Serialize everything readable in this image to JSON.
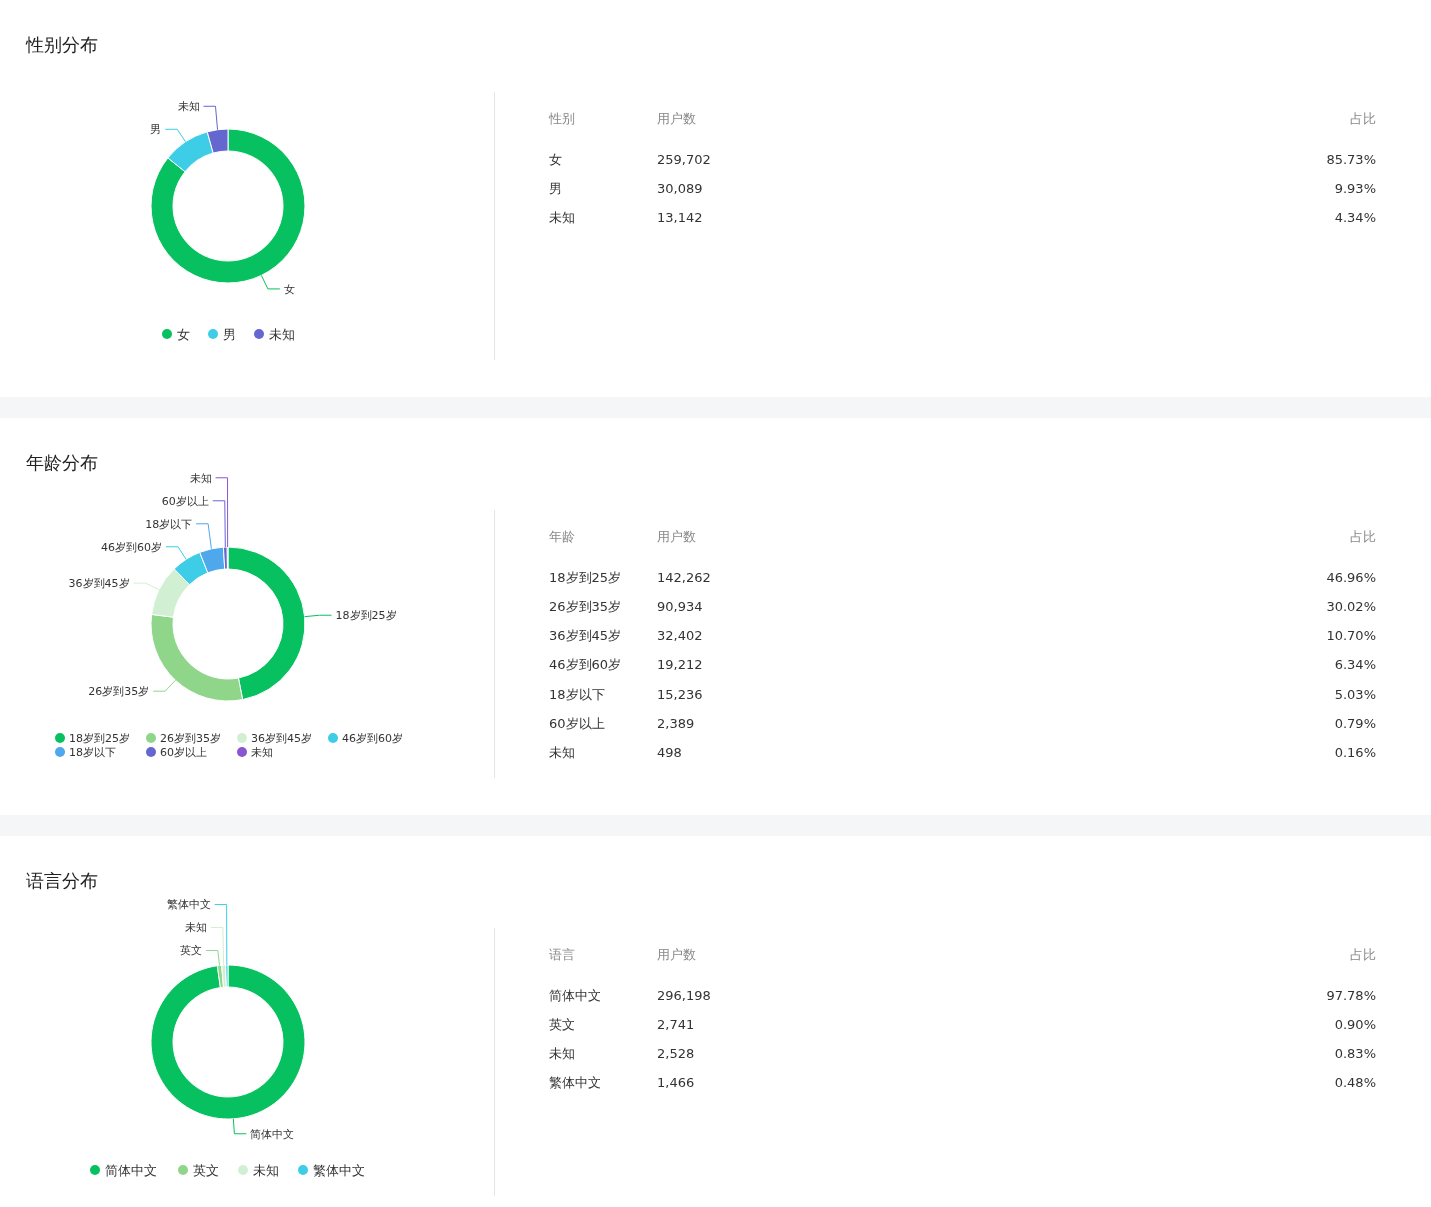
{
  "chart_data": [
    {
      "type": "donut",
      "title": "性别分布",
      "categories": [
        "女",
        "男",
        "未知"
      ],
      "values": [
        85.73,
        9.93,
        4.34
      ],
      "colors": [
        "#07c160",
        "#3dcde6",
        "#6467d0"
      ],
      "legend": "bottom"
    },
    {
      "type": "other",
      "xlabel": "性别",
      "categories": [
        "女",
        "男",
        "未知"
      ],
      "data_labels": true,
      "series": [
        {
          "name": "用户数",
          "values": [
            259702,
            30089,
            13142
          ],
          "value_labels": [
            "259,702",
            "30,089",
            "13,142"
          ]
        },
        {
          "name": "占比",
          "values": [
            85.73,
            9.93,
            4.34
          ],
          "value_labels": [
            "85.73%",
            "9.93%",
            "4.34%"
          ]
        }
      ]
    },
    {
      "type": "donut",
      "title": "年龄分布",
      "categories": [
        "18岁到25岁",
        "26岁到35岁",
        "36岁到45岁",
        "46岁到60岁",
        "18岁以下",
        "60岁以上",
        "未知"
      ],
      "values": [
        46.96,
        30.02,
        10.7,
        6.34,
        5.03,
        0.79,
        0.16
      ],
      "colors": [
        "#07c160",
        "#8fd68a",
        "#d1f0d3",
        "#3dcde6",
        "#4fa7ec",
        "#6467d0",
        "#8a56d0"
      ],
      "legend": "bottom"
    },
    {
      "type": "other",
      "xlabel": "年龄",
      "categories": [
        "18岁到25岁",
        "26岁到35岁",
        "36岁到45岁",
        "46岁到60岁",
        "18岁以下",
        "60岁以上",
        "未知"
      ],
      "data_labels": true,
      "series": [
        {
          "name": "用户数",
          "values": [
            142262,
            90934,
            32402,
            19212,
            15236,
            2389,
            498
          ],
          "value_labels": [
            "142,262",
            "90,934",
            "32,402",
            "19,212",
            "15,236",
            "2,389",
            "498"
          ]
        },
        {
          "name": "占比",
          "values": [
            46.96,
            30.02,
            10.7,
            6.34,
            5.03,
            0.79,
            0.16
          ],
          "value_labels": [
            "46.96%",
            "30.02%",
            "10.70%",
            "6.34%",
            "5.03%",
            "0.79%",
            "0.16%"
          ]
        }
      ]
    },
    {
      "type": "donut",
      "title": "语言分布",
      "categories": [
        "简体中文",
        "英文",
        "未知",
        "繁体中文"
      ],
      "values": [
        97.78,
        0.9,
        0.83,
        0.48
      ],
      "colors": [
        "#07c160",
        "#8fd68a",
        "#d1f0d3",
        "#3dcde6"
      ],
      "legend": "bottom"
    },
    {
      "type": "other",
      "xlabel": "语言",
      "categories": [
        "简体中文",
        "英文",
        "未知",
        "繁体中文"
      ],
      "data_labels": true,
      "series": [
        {
          "name": "用户数",
          "values": [
            296198,
            2741,
            2528,
            1466
          ],
          "value_labels": [
            "296,198",
            "2,741",
            "2,528",
            "1,466"
          ]
        },
        {
          "name": "占比",
          "values": [
            97.78,
            0.9,
            0.83,
            0.48
          ],
          "value_labels": [
            "97.78%",
            "0.90%",
            "0.83%",
            "0.48%"
          ]
        }
      ]
    }
  ]
}
